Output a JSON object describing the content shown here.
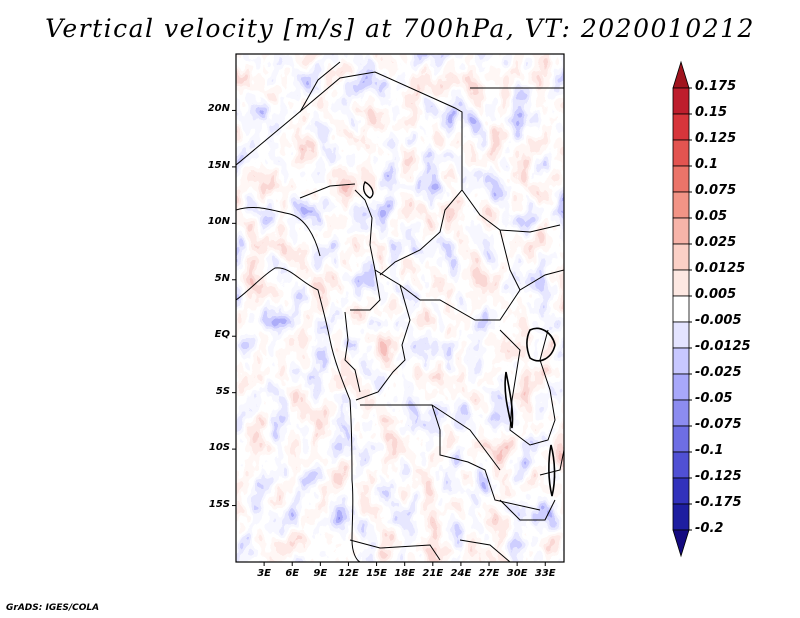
{
  "title": "Vertical velocity [m/s] at 700hPa, VT: 2020010212",
  "credit": "GrADS: IGES/COLA",
  "map": {
    "lon_range": [
      0,
      35
    ],
    "lat_range": [
      -20,
      25
    ],
    "lat_labels": [
      "20N",
      "15N",
      "10N",
      "5N",
      "EQ",
      "5S",
      "10S",
      "15S"
    ],
    "lat_values": [
      20,
      15,
      10,
      5,
      0,
      -5,
      -10,
      -15
    ],
    "lon_labels": [
      "3E",
      "6E",
      "9E",
      "12E",
      "15E",
      "18E",
      "21E",
      "24E",
      "27E",
      "30E",
      "33E"
    ],
    "lon_values": [
      3,
      6,
      9,
      12,
      15,
      18,
      21,
      24,
      27,
      30,
      33
    ]
  },
  "colorbar": {
    "labels": [
      "0.175",
      "0.15",
      "0.125",
      "0.1",
      "0.075",
      "0.05",
      "0.025",
      "0.0125",
      "0.005",
      "-0.005",
      "-0.0125",
      "-0.025",
      "-0.05",
      "-0.075",
      "-0.1",
      "-0.125",
      "-0.175",
      "-0.2"
    ],
    "colors": [
      "#a0141e",
      "#be1e2d",
      "#d7353b",
      "#e35450",
      "#eb7469",
      "#f29486",
      "#f7b4a9",
      "#fbd0c6",
      "#fde8e2",
      "#ffffff",
      "#e4e4ff",
      "#c8c8ff",
      "#a8a8fa",
      "#8c8cf0",
      "#6e6ee4",
      "#5050d4",
      "#3232bc",
      "#1e1ea0",
      "#140a80"
    ]
  }
}
